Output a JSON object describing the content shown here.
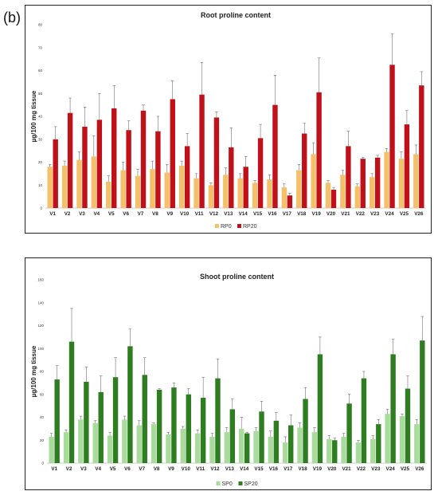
{
  "panel_label": "(b)",
  "chart_data": [
    {
      "type": "bar",
      "title": "Root proline content",
      "xlabel": "",
      "ylabel": "µg/100 mg tissue",
      "ylim": [
        0,
        80
      ],
      "yticks": [
        0,
        10,
        20,
        30,
        40,
        50,
        60,
        70,
        80
      ],
      "legend_position": "bottom-center",
      "error_bars": true,
      "categories": [
        "V1",
        "V2",
        "V3",
        "V4",
        "V5",
        "V6",
        "V7",
        "V8",
        "V9",
        "V10",
        "V11",
        "V12",
        "V13",
        "V14",
        "V15",
        "V16",
        "V17",
        "V18",
        "V19",
        "V20",
        "V21",
        "V22",
        "V23",
        "V24",
        "V25",
        "V26"
      ],
      "series": [
        {
          "name": "RP0",
          "color": "#f5c06a",
          "values": [
            18,
            18.5,
            21,
            22.5,
            11.5,
            16.5,
            14,
            17,
            15.5,
            18.5,
            13,
            10,
            14.5,
            13,
            11,
            12.5,
            9,
            16.5,
            23.5,
            11,
            14.5,
            9.5,
            13.5,
            24.5,
            21.5,
            23.5
          ],
          "errors": [
            1,
            2,
            3.5,
            9,
            2.5,
            3.5,
            3,
            3.5,
            3.5,
            2,
            2,
            1,
            3,
            2,
            1,
            2,
            1.5,
            2.5,
            5,
            1,
            2,
            1,
            1.5,
            1.5,
            3,
            4
          ]
        },
        {
          "name": "RP20",
          "color": "#c0101a",
          "values": [
            30,
            41.5,
            35.5,
            38.5,
            43.5,
            34,
            42.5,
            33.5,
            47.5,
            27,
            49.5,
            39.5,
            26.5,
            18,
            30.5,
            45,
            5.5,
            32.5,
            50.5,
            8,
            27,
            21.5,
            22,
            62.5,
            36.5,
            53.5
          ],
          "errors": [
            5.5,
            6.5,
            8.5,
            11.5,
            10,
            4,
            2.5,
            6.5,
            8,
            5.5,
            14,
            2.5,
            8.5,
            4.5,
            6,
            13,
            1,
            4.5,
            15,
            1,
            6.5,
            0.5,
            1,
            13.5,
            6,
            6
          ]
        }
      ]
    },
    {
      "type": "bar",
      "title": "Shoot proline content",
      "xlabel": "",
      "ylabel": "µg/100 mg tissue",
      "ylim": [
        0,
        160
      ],
      "yticks": [
        0,
        20,
        40,
        60,
        80,
        100,
        120,
        140,
        160
      ],
      "legend_position": "bottom-center",
      "error_bars": true,
      "categories": [
        "V1",
        "V2",
        "V3",
        "V4",
        "V5",
        "V6",
        "V7",
        "V8",
        "V9",
        "V10",
        "V11",
        "V12",
        "V13",
        "V14",
        "V15",
        "V16",
        "V17",
        "V18",
        "V19",
        "V20",
        "V21",
        "V22",
        "V23",
        "V24",
        "V25",
        "V26"
      ],
      "series": [
        {
          "name": "SP0",
          "color": "#a9dc9c",
          "values": [
            23,
            27,
            38,
            35,
            24,
            38,
            33,
            34,
            25,
            30,
            26,
            23,
            27,
            30,
            28,
            23,
            18,
            31,
            27,
            21,
            23,
            18,
            21,
            43,
            41,
            34
          ],
          "errors": [
            3,
            2,
            3,
            2,
            3,
            3,
            4,
            1,
            2,
            2,
            3,
            3,
            4,
            10,
            3,
            5,
            5,
            4,
            4,
            3,
            3,
            2,
            3,
            4,
            2,
            4
          ]
        },
        {
          "name": "SP20",
          "color": "#2e7d20",
          "values": [
            73,
            106,
            71,
            62,
            75,
            102,
            77,
            64,
            66,
            60,
            57,
            74,
            47,
            26,
            45,
            37,
            33,
            56,
            95,
            20,
            52,
            74,
            34,
            95,
            65,
            107
          ],
          "errors": [
            12,
            29,
            13,
            14,
            17,
            15,
            15,
            1,
            4,
            5,
            18,
            17,
            9,
            1,
            9,
            7,
            9,
            10,
            15,
            2,
            8,
            6,
            4,
            13,
            11,
            21
          ]
        }
      ]
    }
  ]
}
